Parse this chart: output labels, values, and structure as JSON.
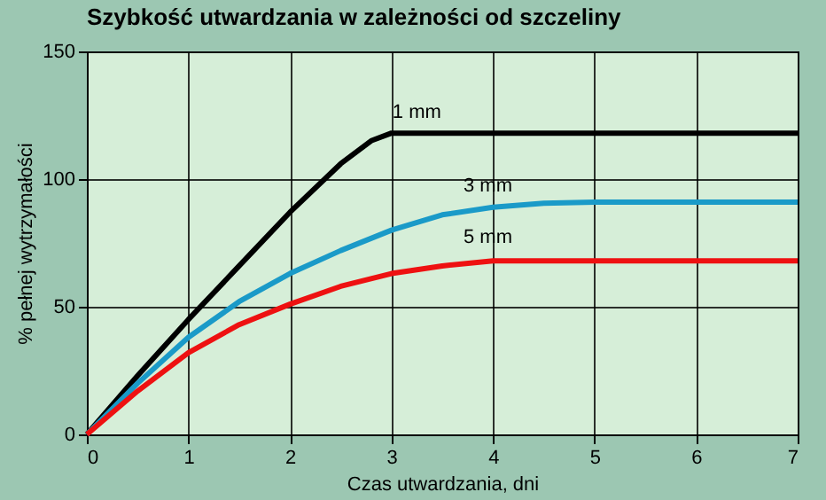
{
  "chart_data": {
    "type": "line",
    "title": "Szybkość utwardzania w zależności od szczeliny",
    "xlabel": "Czas utwardzania, dni",
    "ylabel": "% pełnej wytrzymałości",
    "series": [
      {
        "name": "1 mm",
        "color": "#000000",
        "x": [
          0,
          0.5,
          1,
          1.5,
          2,
          2.5,
          2.8,
          3.0,
          3.2,
          7
        ],
        "values": [
          0,
          23,
          45,
          66,
          87,
          106,
          115,
          118,
          118,
          118
        ]
      },
      {
        "name": "3 mm",
        "color": "#1a9ac8",
        "x": [
          0,
          0.5,
          1,
          1.5,
          2,
          2.5,
          3,
          3.5,
          4,
          4.5,
          5,
          7
        ],
        "values": [
          0,
          20,
          38,
          52,
          63,
          72,
          80,
          86,
          89,
          90.5,
          91,
          91
        ]
      },
      {
        "name": "5 mm",
        "color": "#ee1111",
        "x": [
          0,
          0.5,
          1,
          1.5,
          2,
          2.5,
          3,
          3.5,
          4,
          5,
          7
        ],
        "values": [
          0,
          17,
          32,
          43,
          51,
          58,
          63,
          66,
          68,
          68,
          68
        ]
      }
    ],
    "xlim": [
      0,
      7
    ],
    "xticks": [
      0,
      1,
      2,
      3,
      4,
      5,
      6,
      7
    ],
    "ylim": [
      0,
      150
    ],
    "yticks": [
      0,
      50,
      100,
      150
    ],
    "grid": true,
    "marker": "none",
    "line_style": "solid",
    "legend": false
  }
}
